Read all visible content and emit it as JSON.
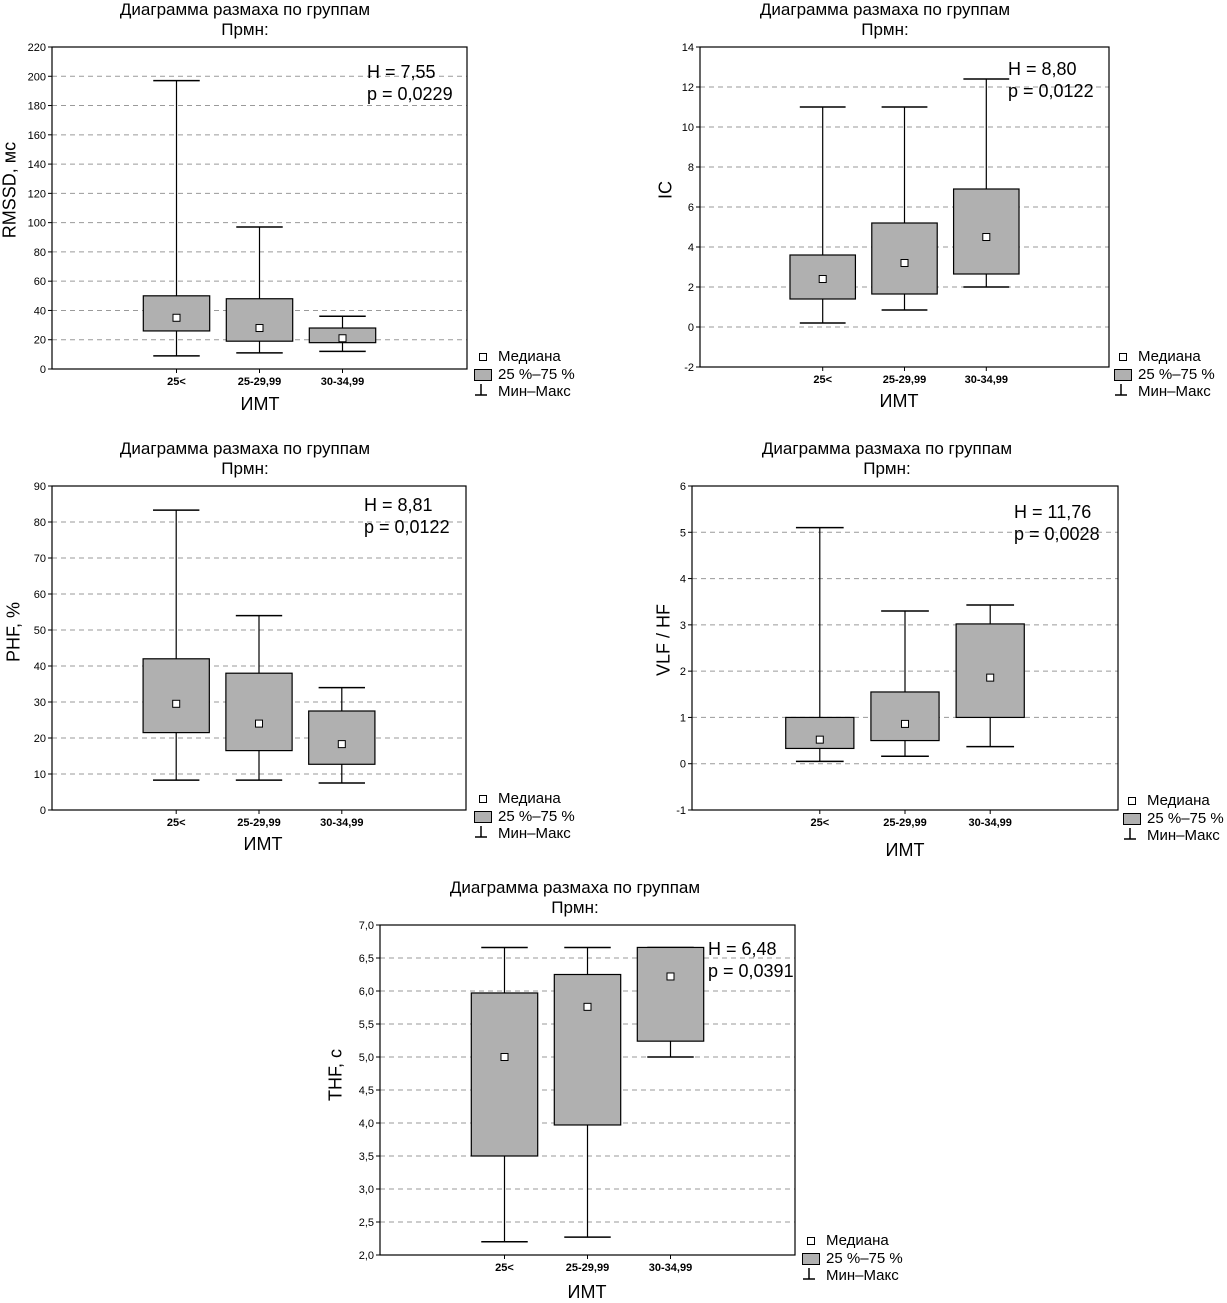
{
  "legend": {
    "median": "Медиана",
    "box": "25 %–75 %",
    "whisker": "Мин–Макс"
  },
  "colors": {
    "box_fill": "#b0b0b0",
    "grid": "#9a9a9a",
    "frame": "#000000"
  },
  "chart_data": [
    {
      "type": "box",
      "title": "Диаграмма размаха по группам",
      "subtitle": "Прмн:",
      "xlabel": "ИМТ",
      "ylabel": "RMSSD, мс",
      "ylim": [
        0,
        220
      ],
      "yticks": [
        "0",
        "20",
        "40",
        "60",
        "80",
        "100",
        "120",
        "140",
        "160",
        "180",
        "200",
        "220"
      ],
      "categories": [
        "25<",
        "25-29,99",
        "30-34,99"
      ],
      "stats": {
        "h": "H = 7,55",
        "p": "p = 0,0229"
      },
      "groups": [
        {
          "min": 9,
          "q1": 26,
          "median": 35,
          "q3": 50,
          "max": 197
        },
        {
          "min": 11,
          "q1": 19,
          "median": 28,
          "q3": 48,
          "max": 97
        },
        {
          "min": 12,
          "q1": 18,
          "median": 21,
          "q3": 28,
          "max": 36
        }
      ]
    },
    {
      "type": "box",
      "title": "Диаграмма размаха по группам",
      "subtitle": "Прмн:",
      "xlabel": "ИМТ",
      "ylabel": "IC",
      "ylim": [
        -2,
        14
      ],
      "yticks": [
        "-2",
        "0",
        "2",
        "4",
        "6",
        "8",
        "10",
        "12",
        "14"
      ],
      "categories": [
        "25<",
        "25-29,99",
        "30-34,99"
      ],
      "stats": {
        "h": "H = 8,80",
        "p": "p = 0,0122"
      },
      "groups": [
        {
          "min": 0.2,
          "q1": 1.4,
          "median": 2.4,
          "q3": 3.6,
          "max": 11.0
        },
        {
          "min": 0.85,
          "q1": 1.65,
          "median": 3.2,
          "q3": 5.2,
          "max": 11.0
        },
        {
          "min": 2.0,
          "q1": 2.65,
          "median": 4.5,
          "q3": 6.9,
          "max": 12.4
        }
      ]
    },
    {
      "type": "box",
      "title": "Диаграмма размаха по группам",
      "subtitle": "Прмн:",
      "xlabel": "ИМТ",
      "ylabel": "PHF, %",
      "ylim": [
        0,
        90
      ],
      "yticks": [
        "0",
        "10",
        "20",
        "30",
        "40",
        "50",
        "60",
        "70",
        "80",
        "90"
      ],
      "categories": [
        "25<",
        "25-29,99",
        "30-34,99"
      ],
      "stats": {
        "h": "H = 8,81",
        "p": "p = 0,0122"
      },
      "groups": [
        {
          "min": 8.3,
          "q1": 21.5,
          "median": 29.5,
          "q3": 42,
          "max": 83.3
        },
        {
          "min": 8.3,
          "q1": 16.5,
          "median": 24,
          "q3": 38,
          "max": 54
        },
        {
          "min": 7.5,
          "q1": 12.7,
          "median": 18.3,
          "q3": 27.5,
          "max": 34
        }
      ]
    },
    {
      "type": "box",
      "title": "Диаграмма размаха по группам",
      "subtitle": "Прмн:",
      "xlabel": "ИМТ",
      "ylabel": "VLF / HF",
      "ylim": [
        -1,
        6
      ],
      "yticks": [
        "-1",
        "0",
        "1",
        "2",
        "3",
        "4",
        "5",
        "6"
      ],
      "categories": [
        "25<",
        "25-29,99",
        "30-34,99"
      ],
      "stats": {
        "h": "H = 11,76",
        "p": "p = 0,0028"
      },
      "groups": [
        {
          "min": 0.05,
          "q1": 0.33,
          "median": 0.52,
          "q3": 1.0,
          "max": 5.1
        },
        {
          "min": 0.16,
          "q1": 0.5,
          "median": 0.86,
          "q3": 1.55,
          "max": 3.3
        },
        {
          "min": 0.37,
          "q1": 1.0,
          "median": 1.86,
          "q3": 3.02,
          "max": 3.43
        }
      ]
    },
    {
      "type": "box",
      "title": "Диаграмма размаха по группам",
      "subtitle": "Прмн:",
      "xlabel": "ИМТ",
      "ylabel": "THF, с",
      "ylim": [
        2.0,
        7.0
      ],
      "yticks": [
        "2,0",
        "2,5",
        "3,0",
        "3,5",
        "4,0",
        "4,5",
        "5,0",
        "5,5",
        "6,0",
        "6,5",
        "7,0"
      ],
      "categories": [
        "25<",
        "25-29,99",
        "30-34,99"
      ],
      "stats": {
        "h": "H = 6,48",
        "p": "p = 0,0391"
      },
      "groups": [
        {
          "min": 2.2,
          "q1": 3.5,
          "median": 5.0,
          "q3": 5.97,
          "max": 6.66
        },
        {
          "min": 2.27,
          "q1": 3.97,
          "median": 5.76,
          "q3": 6.25,
          "max": 6.66
        },
        {
          "min": 5.0,
          "q1": 5.24,
          "median": 6.22,
          "q3": 6.66,
          "max": 6.66
        }
      ]
    }
  ]
}
